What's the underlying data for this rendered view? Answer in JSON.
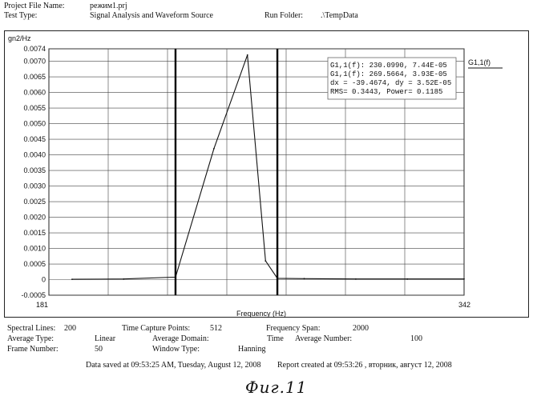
{
  "header": {
    "project_label": "Project File Name:",
    "project_value": "режим1.prj",
    "test_label": "Test Type:",
    "test_value": "Signal Analysis and Waveform Source",
    "run_label": "Run Folder:",
    "run_value": ".\\TempData"
  },
  "cursor_box": {
    "line1": "G1,1(f): 230.0990, 7.44E-05",
    "line2": "G1,1(f): 269.5664, 3.93E-05",
    "line3": "dx = -39.4674, dy = 3.52E-05",
    "line4": "RMS= 0.3443, Power= 0.1185"
  },
  "chart_data": {
    "type": "line",
    "title": "",
    "ylabel": "gn2/Hz",
    "xlabel": "Frequency (Hz)",
    "xlim": [
      181,
      342
    ],
    "ylim": [
      -0.0005,
      0.0074
    ],
    "x_ticks": [
      "181",
      "342"
    ],
    "y_ticks": [
      "0.0074",
      "0.0070",
      "0.0065",
      "0.0060",
      "0.0055",
      "0.0050",
      "0.0045",
      "0.0040",
      "0.0035",
      "0.0030",
      "0.0025",
      "0.0020",
      "0.0015",
      "0.0010",
      "0.0005",
      "0",
      "-0.0005"
    ],
    "y_tick_values": [
      0.0074,
      0.007,
      0.0065,
      0.006,
      0.0055,
      0.005,
      0.0045,
      0.004,
      0.0035,
      0.003,
      0.0025,
      0.002,
      0.0015,
      0.001,
      0.0005,
      0,
      -0.0005
    ],
    "grid": true,
    "series": [
      {
        "name": "G1,1(f)",
        "color": "#111111",
        "x": [
          190,
          210,
          230.1,
          245,
          258,
          265,
          269.6,
          280,
          300,
          320,
          342
        ],
        "y": [
          1e-05,
          2e-05,
          8e-05,
          0.0042,
          0.0072,
          0.0006,
          4e-05,
          3e-05,
          2e-05,
          2e-05,
          2e-05
        ]
      }
    ],
    "cursors": [
      230.1,
      269.6
    ],
    "legend_position": "right"
  },
  "footer": {
    "spectral_lines_label": "Spectral Lines:",
    "spectral_lines_value": "200",
    "capture_points_label": "Time Capture Points:",
    "capture_points_value": "512",
    "freq_span_label": "Frequency Span:",
    "freq_span_value": "2000",
    "avg_type_label": "Average Type:",
    "avg_type_value": "Linear",
    "avg_domain_label": "Average Domain:",
    "avg_domain_value": "Time",
    "avg_number_label": "Average Number:",
    "avg_number_value": "100",
    "frame_label": "Frame Number:",
    "frame_value": "50",
    "window_label": "Window Type:",
    "window_value": "Hanning",
    "saved_text": "Data saved at 09:53:25 AM, Tuesday, August 12, 2008",
    "report_text": "Report created at 09:53:26 , вторник, август 12, 2008"
  },
  "signature": "Фиг.11"
}
